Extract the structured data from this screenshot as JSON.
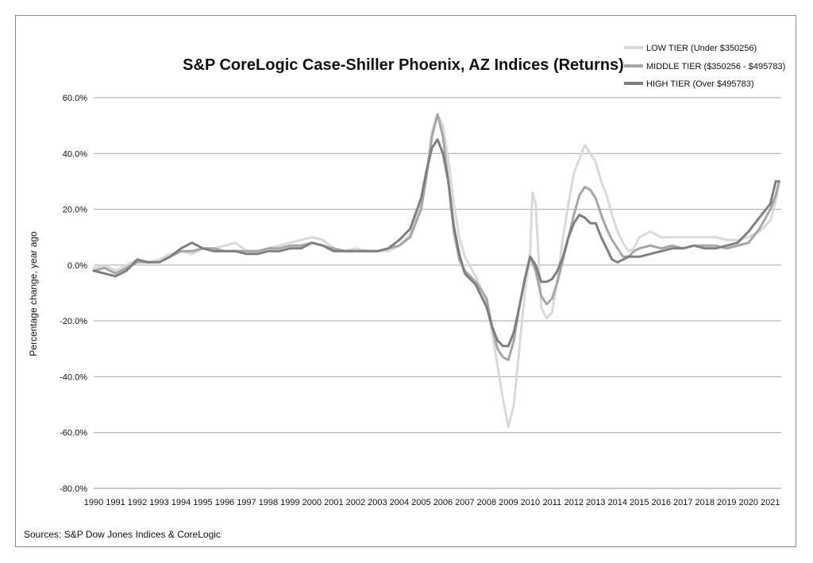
{
  "chart_data": {
    "type": "line",
    "title": "S&P CoreLogic Case-Shiller Phoenix, AZ Indices (Returns)",
    "ylabel": "Percentage change, year ago",
    "xlabel": "",
    "source": "Sources: S&P Dow Jones Indices & CoreLogic",
    "ylim": [
      -80,
      60
    ],
    "xlim": [
      1990,
      2021.5
    ],
    "yticks": [
      -80,
      -60,
      -40,
      -20,
      0,
      20,
      40,
      60
    ],
    "ytick_labels": [
      "-80.0%",
      "-60.0%",
      "-40.0%",
      "-20.0%",
      "0.0%",
      "20.0%",
      "40.0%",
      "60.0%"
    ],
    "xticks": [
      1990,
      1991,
      1992,
      1993,
      1994,
      1995,
      1996,
      1997,
      1998,
      1999,
      2000,
      2001,
      2002,
      2003,
      2004,
      2005,
      2006,
      2007,
      2008,
      2009,
      2010,
      2011,
      2012,
      2013,
      2014,
      2015,
      2016,
      2017,
      2018,
      2019,
      2020,
      2021
    ],
    "xtick_labels": [
      "1990",
      "1991",
      "1992",
      "1993",
      "1994",
      "1995",
      "1996",
      "1997",
      "1998",
      "1999",
      "2000",
      "2001",
      "2002",
      "2003",
      "2004",
      "2005",
      "2006",
      "2007",
      "2008",
      "2009",
      "2010",
      "2011",
      "2012",
      "2013",
      "2014",
      "2015",
      "2016",
      "2017",
      "2018",
      "2019",
      "2020",
      "2021"
    ],
    "grid": "horizontal",
    "legend_position": "top-right",
    "series": [
      {
        "name": "LOW TIER (Under $350256)",
        "color": "#d9d9d9",
        "x": [
          1990,
          1990.5,
          1991,
          1991.5,
          1992,
          1992.5,
          1993,
          1993.5,
          1994,
          1994.5,
          1995,
          1995.5,
          1996,
          1996.5,
          1997,
          1997.5,
          1998,
          1998.5,
          1999,
          1999.5,
          2000,
          2000.5,
          2001,
          2001.5,
          2002,
          2002.5,
          2003,
          2003.5,
          2004,
          2004.5,
          2005,
          2005.25,
          2005.5,
          2005.75,
          2006,
          2006.25,
          2006.5,
          2006.75,
          2007,
          2007.5,
          2008,
          2008.25,
          2008.5,
          2008.75,
          2009,
          2009.25,
          2009.5,
          2009.75,
          2010,
          2010.1,
          2010.25,
          2010.4,
          2010.5,
          2010.75,
          2011,
          2011.25,
          2011.5,
          2011.75,
          2012,
          2012.25,
          2012.5,
          2012.75,
          2013,
          2013.25,
          2013.5,
          2013.75,
          2014,
          2014.25,
          2014.5,
          2014.75,
          2015,
          2015.5,
          2016,
          2016.5,
          2017,
          2017.5,
          2018,
          2018.5,
          2019,
          2019.5,
          2020,
          2020.5,
          2021,
          2021.25,
          2021.4
        ],
        "values": [
          -1,
          0,
          -2,
          0,
          2,
          1,
          2,
          4,
          5,
          4,
          6,
          6,
          7,
          8,
          5,
          5,
          6,
          7,
          8,
          9,
          10,
          9,
          6,
          5,
          6,
          5,
          5,
          5,
          7,
          11,
          22,
          33,
          48,
          54,
          50,
          38,
          22,
          10,
          3,
          -4,
          -13,
          -24,
          -36,
          -48,
          -58,
          -50,
          -30,
          -10,
          5,
          26,
          22,
          0,
          -15,
          -19,
          -17,
          -5,
          10,
          22,
          33,
          38,
          43,
          40,
          37,
          30,
          25,
          18,
          12,
          8,
          5,
          6,
          10,
          12,
          10,
          10,
          10,
          10,
          10,
          10,
          9,
          9,
          10,
          12,
          16,
          23,
          30
        ]
      },
      {
        "name": "MIDDLE TIER ($350256 - $495783)",
        "color": "#a6a6a6",
        "x": [
          1990,
          1990.5,
          1991,
          1991.5,
          1992,
          1992.5,
          1993,
          1993.5,
          1994,
          1994.5,
          1995,
          1995.5,
          1996,
          1996.5,
          1997,
          1997.5,
          1998,
          1998.5,
          1999,
          1999.5,
          2000,
          2000.5,
          2001,
          2001.5,
          2002,
          2002.5,
          2003,
          2003.5,
          2004,
          2004.5,
          2005,
          2005.25,
          2005.5,
          2005.75,
          2006,
          2006.25,
          2006.5,
          2006.75,
          2007,
          2007.5,
          2008,
          2008.25,
          2008.5,
          2008.75,
          2009,
          2009.25,
          2009.5,
          2009.75,
          2010,
          2010.25,
          2010.5,
          2010.75,
          2011,
          2011.25,
          2011.5,
          2011.75,
          2012,
          2012.25,
          2012.5,
          2012.75,
          2013,
          2013.25,
          2013.5,
          2013.75,
          2014,
          2014.25,
          2014.5,
          2014.75,
          2015,
          2015.5,
          2016,
          2016.5,
          2017,
          2017.5,
          2018,
          2018.5,
          2019,
          2019.5,
          2020,
          2020.5,
          2021,
          2021.25,
          2021.4
        ],
        "values": [
          -2,
          -1,
          -3,
          -1,
          1,
          1,
          1,
          3,
          5,
          5,
          6,
          6,
          5,
          5,
          5,
          5,
          6,
          6,
          7,
          7,
          8,
          7,
          6,
          5,
          5,
          5,
          5,
          6,
          7,
          10,
          20,
          32,
          46,
          54,
          46,
          30,
          12,
          2,
          -2,
          -6,
          -12,
          -22,
          -30,
          -33,
          -34,
          -27,
          -15,
          -5,
          3,
          -2,
          -11,
          -14,
          -12,
          -6,
          2,
          10,
          18,
          25,
          28,
          27,
          24,
          18,
          13,
          9,
          6,
          3,
          3,
          5,
          6,
          7,
          6,
          7,
          6,
          7,
          7,
          7,
          6,
          7,
          8,
          13,
          20,
          25,
          30
        ]
      },
      {
        "name": "HIGH TIER (Over $495783)",
        "color": "#7f7f7f",
        "x": [
          1990,
          1990.5,
          1991,
          1991.5,
          1992,
          1992.5,
          1993,
          1993.5,
          1994,
          1994.5,
          1995,
          1995.5,
          1996,
          1996.5,
          1997,
          1997.5,
          1998,
          1998.5,
          1999,
          1999.5,
          2000,
          2000.5,
          2001,
          2001.5,
          2002,
          2002.5,
          2003,
          2003.5,
          2004,
          2004.5,
          2005,
          2005.25,
          2005.5,
          2005.75,
          2006,
          2006.25,
          2006.5,
          2006.75,
          2007,
          2007.5,
          2008,
          2008.25,
          2008.5,
          2008.75,
          2009,
          2009.25,
          2009.5,
          2009.75,
          2010,
          2010.25,
          2010.5,
          2010.75,
          2011,
          2011.25,
          2011.5,
          2011.75,
          2012,
          2012.25,
          2012.5,
          2012.75,
          2013,
          2013.25,
          2013.5,
          2013.75,
          2014,
          2014.25,
          2014.5,
          2014.75,
          2015,
          2015.5,
          2016,
          2016.5,
          2017,
          2017.5,
          2018,
          2018.5,
          2019,
          2019.5,
          2020,
          2020.5,
          2021,
          2021.25,
          2021.4
        ],
        "values": [
          -2,
          -3,
          -4,
          -2,
          2,
          1,
          1,
          3,
          6,
          8,
          6,
          5,
          5,
          5,
          4,
          4,
          5,
          5,
          6,
          6,
          8,
          7,
          5,
          5,
          5,
          5,
          5,
          6,
          9,
          13,
          24,
          34,
          42,
          45,
          40,
          30,
          14,
          4,
          -3,
          -7,
          -15,
          -22,
          -27,
          -29,
          -29,
          -24,
          -15,
          -5,
          3,
          0,
          -6,
          -6,
          -5,
          -2,
          3,
          10,
          15,
          18,
          17,
          15,
          15,
          10,
          6,
          2,
          1,
          2,
          3,
          3,
          3,
          4,
          5,
          6,
          6,
          7,
          6,
          6,
          7,
          8,
          12,
          17,
          22,
          30,
          30
        ]
      }
    ]
  }
}
